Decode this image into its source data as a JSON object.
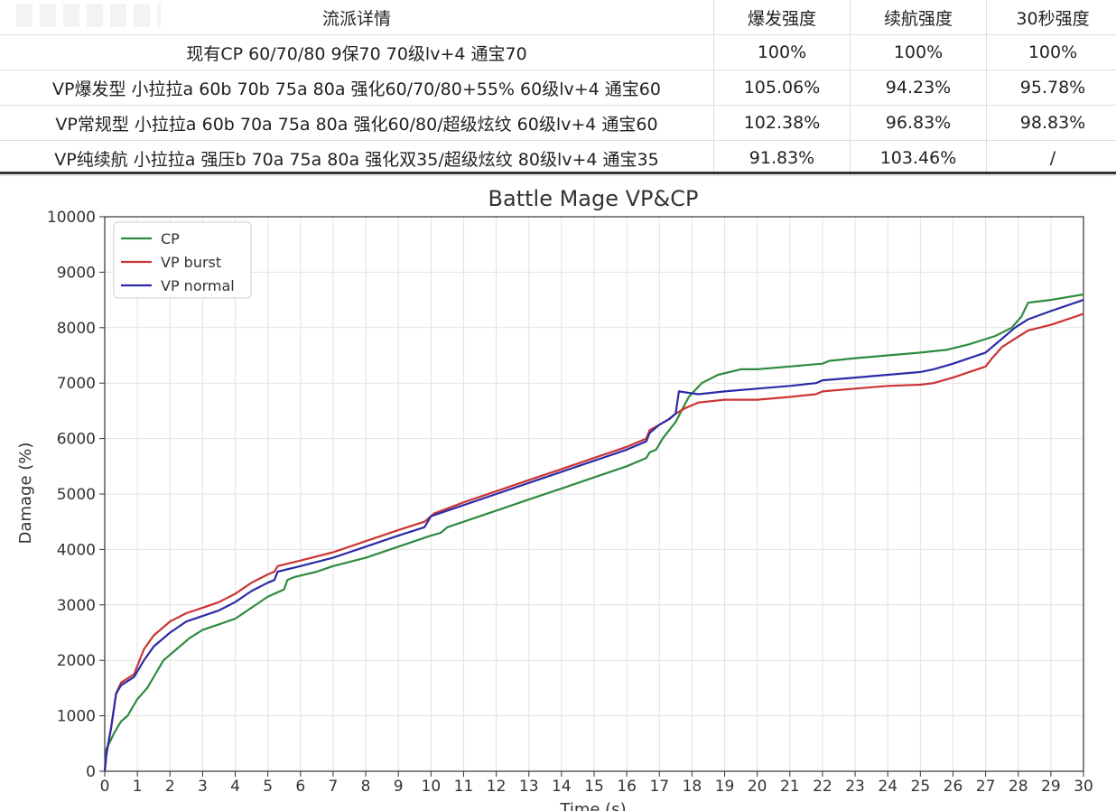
{
  "table": {
    "headers": [
      "流派详情",
      "爆发强度",
      "续航强度",
      "30秒强度"
    ],
    "rows": [
      [
        "现有CP 60/70/80 9保70 70级lv+4 通宝70",
        "100%",
        "100%",
        "100%"
      ],
      [
        "VP爆发型 小拉拉a 60b 70b 75a 80a 强化60/70/80+55% 60级lv+4 通宝60",
        "105.06%",
        "94.23%",
        "95.78%"
      ],
      [
        "VP常规型 小拉拉a 60b 70a 75a 80a 强化60/80/超级炫纹 60级lv+4 通宝60",
        "102.38%",
        "96.83%",
        "98.83%"
      ],
      [
        "VP纯续航 小拉拉a 强压b 70a 75a 80a 强化双35/超级炫纹 80级lv+4 通宝35",
        "91.83%",
        "103.46%",
        "/"
      ]
    ]
  },
  "chart_data": {
    "type": "line",
    "title": "Battle Mage VP&CP",
    "xlabel": "Time (s)",
    "ylabel": "Damage (%)",
    "xlim": [
      0,
      30
    ],
    "ylim": [
      0,
      10000
    ],
    "xticks": [
      0,
      1,
      2,
      3,
      4,
      5,
      6,
      7,
      8,
      9,
      10,
      11,
      12,
      13,
      14,
      15,
      16,
      17,
      18,
      19,
      20,
      21,
      22,
      23,
      24,
      25,
      26,
      27,
      28,
      29,
      30
    ],
    "yticks": [
      0,
      1000,
      2000,
      3000,
      4000,
      5000,
      6000,
      7000,
      8000,
      9000,
      10000
    ],
    "grid": true,
    "legend_position": "top-left",
    "series": [
      {
        "name": "CP",
        "color": "#2e8b3e",
        "x": [
          0,
          0.05,
          0.3,
          0.5,
          0.7,
          1,
          1.3,
          1.6,
          1.8,
          2.2,
          2.6,
          3,
          3.5,
          4,
          4.5,
          5,
          5.5,
          5.6,
          5.8,
          6.5,
          7,
          8,
          9,
          10,
          10.3,
          10.5,
          11,
          12,
          13,
          14,
          15,
          16,
          16.6,
          16.7,
          16.9,
          17.1,
          17.5,
          17.9,
          18.3,
          18.8,
          19.5,
          20,
          21,
          22,
          22.2,
          23,
          24,
          25,
          25.8,
          26.5,
          27.3,
          27.8,
          28.1,
          28.3,
          29,
          30
        ],
        "y": [
          0,
          400,
          700,
          900,
          1000,
          1300,
          1500,
          1800,
          2000,
          2200,
          2400,
          2550,
          2650,
          2750,
          2950,
          3150,
          3280,
          3450,
          3500,
          3600,
          3700,
          3850,
          4050,
          4250,
          4300,
          4400,
          4500,
          4700,
          4900,
          5100,
          5300,
          5500,
          5650,
          5750,
          5800,
          6000,
          6300,
          6750,
          7000,
          7150,
          7250,
          7250,
          7300,
          7350,
          7400,
          7450,
          7500,
          7550,
          7600,
          7700,
          7850,
          8000,
          8200,
          8450,
          8500,
          8600
        ]
      },
      {
        "name": "VP burst",
        "color": "#cc3333",
        "x": [
          0,
          0.05,
          0.2,
          0.35,
          0.5,
          0.9,
          1.2,
          1.5,
          2,
          2.5,
          3,
          3.5,
          4,
          4.5,
          5,
          5.2,
          5.3,
          6,
          7,
          8,
          9,
          9.8,
          10.1,
          11,
          12,
          13,
          14,
          15,
          16,
          16.6,
          16.7,
          17,
          17.3,
          17.5,
          17.8,
          18.2,
          19,
          20,
          21,
          21.8,
          22,
          23,
          24,
          25,
          25.4,
          26,
          27,
          27.2,
          27.5,
          27.9,
          28.3,
          29,
          30
        ],
        "y": [
          0,
          300,
          800,
          1400,
          1600,
          1750,
          2200,
          2450,
          2700,
          2850,
          2950,
          3050,
          3200,
          3400,
          3550,
          3600,
          3700,
          3800,
          3950,
          4150,
          4350,
          4500,
          4650,
          4850,
          5050,
          5250,
          5450,
          5650,
          5850,
          6000,
          6150,
          6250,
          6350,
          6450,
          6550,
          6650,
          6700,
          6700,
          6750,
          6800,
          6850,
          6900,
          6950,
          6970,
          7000,
          7100,
          7300,
          7450,
          7650,
          7800,
          7950,
          8050,
          8250
        ]
      },
      {
        "name": "VP normal",
        "color": "#2b2ba8",
        "x": [
          0,
          0.05,
          0.2,
          0.35,
          0.5,
          0.9,
          1.2,
          1.5,
          2,
          2.5,
          3,
          3.5,
          4,
          4.5,
          5,
          5.2,
          5.3,
          6,
          7,
          8,
          9,
          9.8,
          10,
          11,
          12,
          13,
          14,
          15,
          16,
          16.6,
          16.7,
          17,
          17.3,
          17.5,
          17.6,
          18.2,
          19,
          20,
          21,
          21.8,
          22,
          23,
          24,
          25,
          25.4,
          26,
          27,
          27.2,
          27.5,
          27.9,
          28.3,
          29,
          30
        ],
        "y": [
          0,
          300,
          800,
          1400,
          1550,
          1700,
          2000,
          2250,
          2500,
          2700,
          2800,
          2900,
          3050,
          3250,
          3400,
          3450,
          3600,
          3700,
          3850,
          4050,
          4250,
          4400,
          4600,
          4800,
          5000,
          5200,
          5400,
          5600,
          5800,
          5950,
          6100,
          6250,
          6350,
          6450,
          6850,
          6800,
          6850,
          6900,
          6950,
          7000,
          7050,
          7100,
          7150,
          7200,
          7250,
          7350,
          7550,
          7650,
          7800,
          8000,
          8150,
          8300,
          8500
        ]
      }
    ]
  }
}
